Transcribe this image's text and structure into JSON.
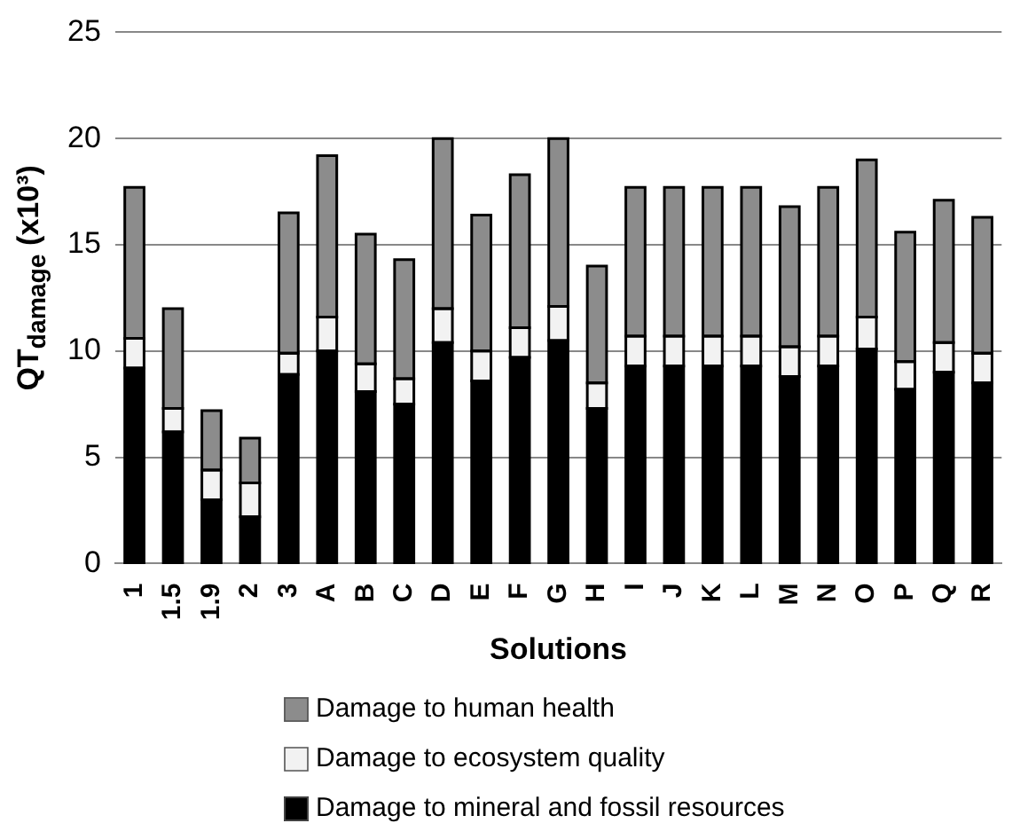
{
  "chart_data": {
    "type": "bar",
    "stacked": true,
    "xlabel": "Solutions",
    "ylabel": "QT$_{damage}$ (x10³)",
    "categories": [
      "1",
      "1.5",
      "1.9",
      "2",
      "3",
      "A",
      "B",
      "C",
      "D",
      "E",
      "F",
      "G",
      "H",
      "I",
      "J",
      "K",
      "L",
      "M",
      "N",
      "O",
      "P",
      "Q",
      "R"
    ],
    "series": [
      {
        "name": "Damage to mineral and fossil resources",
        "color": "#000000",
        "values": [
          9.2,
          6.2,
          3.0,
          2.2,
          8.9,
          10.0,
          8.1,
          7.5,
          10.4,
          8.6,
          9.7,
          10.5,
          7.3,
          9.3,
          9.3,
          9.3,
          9.3,
          8.8,
          9.3,
          10.1,
          8.2,
          9.0,
          8.5
        ]
      },
      {
        "name": "Damage to ecosystem quality",
        "color": "#f2f2f2",
        "values": [
          1.4,
          1.1,
          1.4,
          1.6,
          1.0,
          1.6,
          1.3,
          1.2,
          1.6,
          1.4,
          1.4,
          1.6,
          1.2,
          1.4,
          1.4,
          1.4,
          1.4,
          1.4,
          1.4,
          1.5,
          1.3,
          1.4,
          1.4
        ]
      },
      {
        "name": "Damage to human health",
        "color": "#8c8c8c",
        "values": [
          7.1,
          4.7,
          2.8,
          2.1,
          6.6,
          7.6,
          6.1,
          5.6,
          8.0,
          6.4,
          7.2,
          7.9,
          5.5,
          7.0,
          7.0,
          7.0,
          7.0,
          6.6,
          7.0,
          7.4,
          6.1,
          6.7,
          6.4
        ]
      }
    ],
    "ylim": [
      0,
      25
    ],
    "yticks": [
      0,
      5,
      10,
      15,
      20,
      25
    ],
    "grid": "y",
    "legend": "bottom"
  }
}
